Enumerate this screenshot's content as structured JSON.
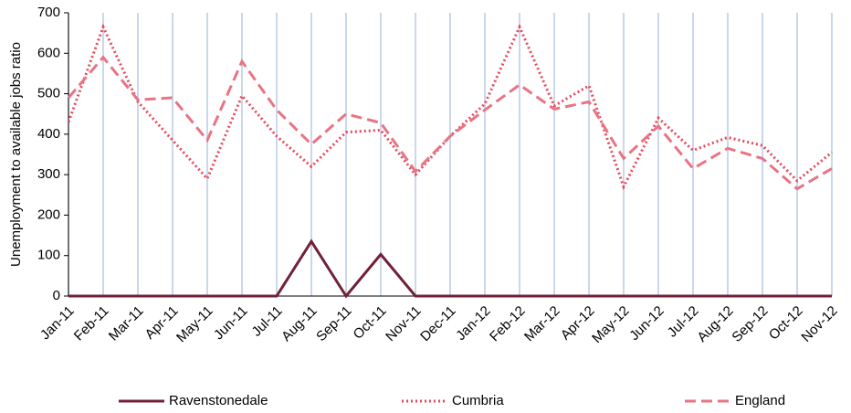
{
  "chart_data": {
    "type": "line",
    "y_label": "Unemployment to available jobs ratio",
    "categories": [
      "Jan-11",
      "Feb-11",
      "Mar-11",
      "Apr-11",
      "May-11",
      "Jun-11",
      "Jul-11",
      "Aug-11",
      "Sep-11",
      "Oct-11",
      "Nov-11",
      "Dec-11",
      "Jan-12",
      "Feb-12",
      "Mar-12",
      "Apr-12",
      "May-12",
      "Jun-12",
      "Jul-12",
      "Aug-12",
      "Sep-12",
      "Oct-12",
      "Nov-12"
    ],
    "series": [
      {
        "name": "Ravenstonedale",
        "color": "#722038",
        "dash": "solid",
        "values": [
          0,
          0,
          0,
          0,
          0,
          0,
          0,
          135,
          0,
          103,
          0,
          0,
          0,
          0,
          0,
          0,
          0,
          0,
          0,
          0,
          0,
          0,
          0
        ]
      },
      {
        "name": "Cumbria",
        "color": "#e8485a",
        "dash": "dotted",
        "values": [
          430,
          665,
          480,
          385,
          290,
          495,
          395,
          320,
          405,
          410,
          300,
          395,
          475,
          665,
          470,
          520,
          270,
          440,
          360,
          392,
          372,
          285,
          355
        ]
      },
      {
        "name": "England",
        "color": "#e87484",
        "dash": "dashed",
        "values": [
          490,
          590,
          485,
          490,
          385,
          580,
          460,
          375,
          450,
          428,
          308,
          395,
          460,
          522,
          462,
          480,
          340,
          420,
          315,
          365,
          340,
          265,
          315
        ]
      }
    ],
    "ylim": [
      0,
      700
    ],
    "yticks": [
      0,
      100,
      200,
      300,
      400,
      500,
      600,
      700
    ],
    "vertical_grid": true,
    "legend": "bottom"
  }
}
